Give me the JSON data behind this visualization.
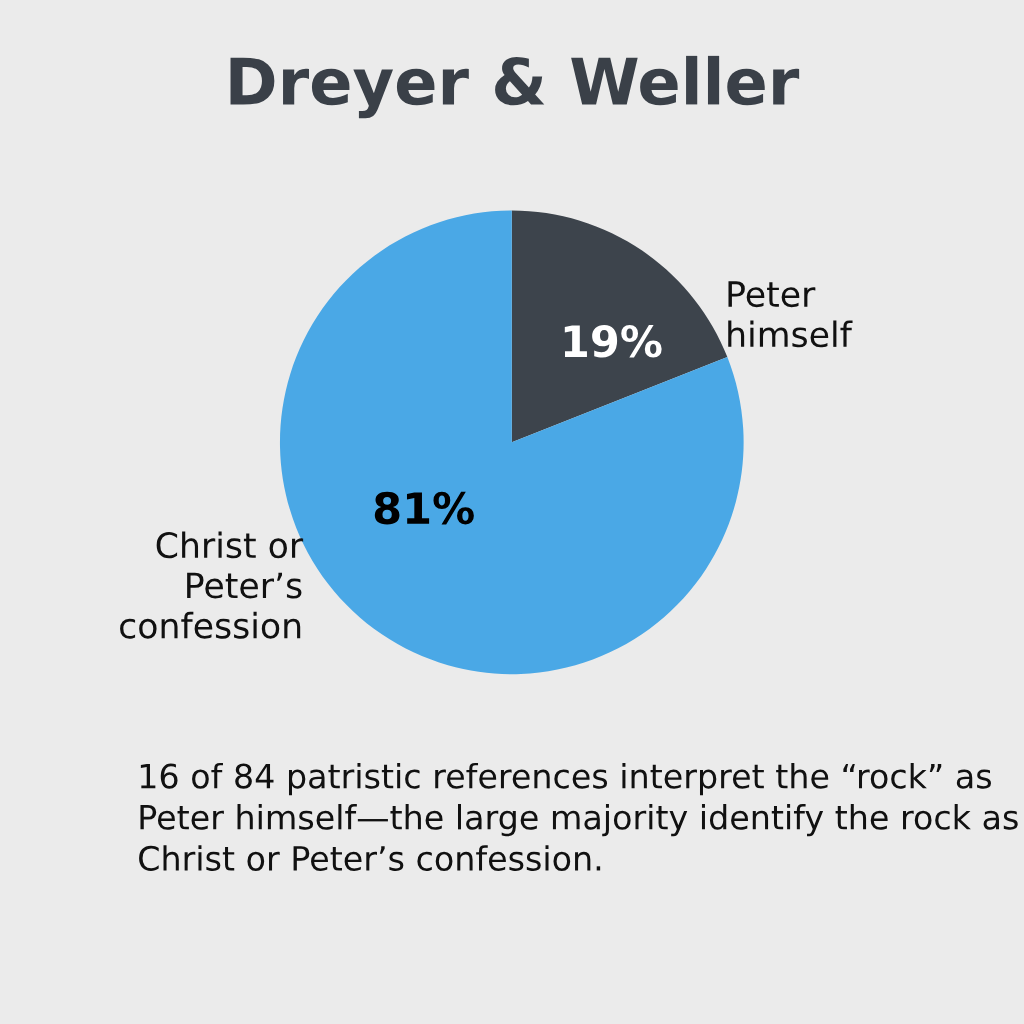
{
  "chart_data": {
    "type": "pie",
    "title": "Dreyer & Weller",
    "categories": [
      "Peter\nhimself",
      "Christ or\nPeter’s\nconfession"
    ],
    "values": [
      19,
      81
    ],
    "colors": [
      "#3d444c",
      "#4aa8e6"
    ],
    "value_labels": [
      "19%",
      "81%"
    ],
    "annotations": [
      "16 of 84 patristic references interpret the “rock” as Peter himself—the large majority identify the rock as Christ or Peter’s confession."
    ]
  }
}
